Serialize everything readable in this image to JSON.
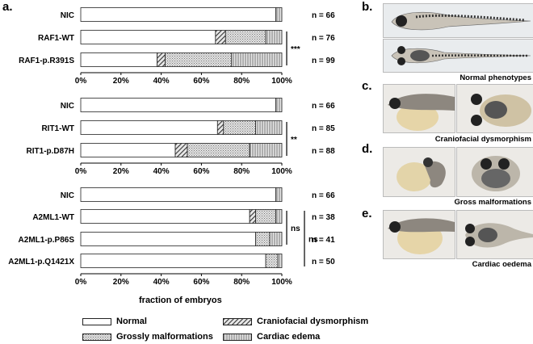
{
  "colors": {
    "normal": "#ffffff",
    "craniofacial": "#555555",
    "grossly": "#bdbdbd",
    "cardiac": "#d6d6d6",
    "outline": "#222222"
  },
  "panels": {
    "a": "a.",
    "b": "b.",
    "c": "c.",
    "d": "d.",
    "e": "e."
  },
  "legend": {
    "normal": "Normal",
    "craniofacial": "Craniofacial dysmorphism",
    "grossly": "Grossly malformations",
    "cardiac": "Cardiac edema"
  },
  "x_axis_label": "fraction of embryos",
  "photo_captions": {
    "b": "Normal phenotypes",
    "c": "Craniofacial dysmorphism",
    "d": "Gross malformations",
    "e": "Cardiac oedema"
  },
  "chart_data": [
    {
      "type": "bar",
      "orientation": "horizontal",
      "stacked": true,
      "categories": [
        "NIC",
        "RAF1-WT",
        "RAF1-p.R391S"
      ],
      "n_labels": [
        "n = 66",
        "n = 76",
        "n = 99"
      ],
      "series": [
        {
          "name": "Normal",
          "values": [
            97,
            67,
            38
          ]
        },
        {
          "name": "Craniofacial dysmorphism",
          "values": [
            0,
            5,
            4
          ]
        },
        {
          "name": "Grossly malformations",
          "values": [
            0,
            20,
            33
          ]
        },
        {
          "name": "Cardiac edema",
          "values": [
            3,
            8,
            25
          ]
        }
      ],
      "xlim": [
        0,
        100
      ],
      "x_ticks": [
        "0%",
        "20%",
        "40%",
        "60%",
        "80%",
        "100%"
      ],
      "significance": [
        {
          "between": [
            1,
            2
          ],
          "label": "***"
        }
      ]
    },
    {
      "type": "bar",
      "orientation": "horizontal",
      "stacked": true,
      "categories": [
        "NIC",
        "RIT1-WT",
        "RIT1-p.D87H"
      ],
      "n_labels": [
        "n = 66",
        "n = 85",
        "n = 88"
      ],
      "series": [
        {
          "name": "Normal",
          "values": [
            97,
            68,
            47
          ]
        },
        {
          "name": "Craniofacial dysmorphism",
          "values": [
            0,
            3,
            6
          ]
        },
        {
          "name": "Grossly malformations",
          "values": [
            0,
            16,
            31
          ]
        },
        {
          "name": "Cardiac edema",
          "values": [
            3,
            13,
            16
          ]
        }
      ],
      "xlim": [
        0,
        100
      ],
      "x_ticks": [
        "0%",
        "20%",
        "40%",
        "60%",
        "80%",
        "100%"
      ],
      "significance": [
        {
          "between": [
            1,
            2
          ],
          "label": "**"
        }
      ]
    },
    {
      "type": "bar",
      "orientation": "horizontal",
      "stacked": true,
      "categories": [
        "NIC",
        "A2ML1-WT",
        "A2ML1-p.P86S",
        "A2ML1-p.Q1421X"
      ],
      "n_labels": [
        "n = 66",
        "n = 38",
        "n = 41",
        "n = 50"
      ],
      "series": [
        {
          "name": "Normal",
          "values": [
            97,
            84,
            87,
            92
          ]
        },
        {
          "name": "Craniofacial dysmorphism",
          "values": [
            0,
            3,
            0,
            0
          ]
        },
        {
          "name": "Grossly malformations",
          "values": [
            0,
            10,
            7,
            6
          ]
        },
        {
          "name": "Cardiac edema",
          "values": [
            3,
            3,
            6,
            2
          ]
        }
      ],
      "xlim": [
        0,
        100
      ],
      "x_ticks": [
        "0%",
        "20%",
        "40%",
        "60%",
        "80%",
        "100%"
      ],
      "significance": [
        {
          "between": [
            1,
            2
          ],
          "label": "ns"
        },
        {
          "between": [
            1,
            3
          ],
          "label": "ns"
        }
      ]
    }
  ]
}
